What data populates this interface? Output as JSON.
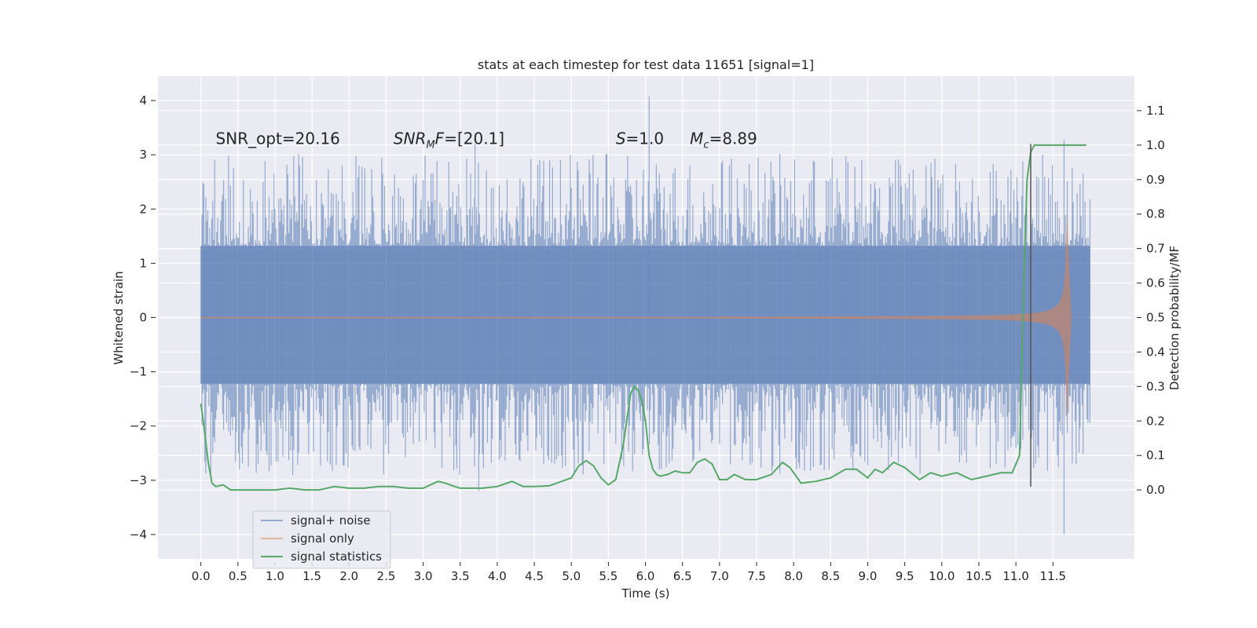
{
  "chart_data": {
    "type": "line",
    "title": "stats at each timestep for test data 11651 [signal=1]",
    "xlabel": "Time (s)",
    "ylabel_left": "Whitened strain",
    "ylabel_right": "Detection probability/MF",
    "xlim": [
      -0.58,
      12.6
    ],
    "ylim_left": [
      -4.45,
      4.45
    ],
    "ylim_right": [
      -0.2,
      1.2
    ],
    "x_ticks": [
      "0.0",
      "0.5",
      "1.0",
      "1.5",
      "2.0",
      "2.5",
      "3.0",
      "3.5",
      "4.0",
      "4.5",
      "5.0",
      "5.5",
      "6.0",
      "6.5",
      "7.0",
      "7.5",
      "8.0",
      "8.5",
      "9.0",
      "9.5",
      "10.0",
      "10.5",
      "11.0",
      "11.5"
    ],
    "y_ticks_left": [
      "−4",
      "−3",
      "−2",
      "−1",
      "0",
      "1",
      "2",
      "3",
      "4"
    ],
    "y_ticks_right": [
      "0.0",
      "0.1",
      "0.2",
      "0.3",
      "0.4",
      "0.5",
      "0.6",
      "0.7",
      "0.8",
      "0.9",
      "1.0",
      "1.1"
    ],
    "annotations": [
      {
        "label": "SNR_opt=20.16",
        "x": 0.2,
        "y": 3.2
      },
      {
        "label": "SNRMF=[20.1]",
        "x": 2.6,
        "y": 3.2
      },
      {
        "label": "S=1.0",
        "x": 5.6,
        "y": 3.2
      },
      {
        "label": "Mc=8.89",
        "x": 6.6,
        "y": 3.2
      }
    ],
    "marker_line": {
      "x": 11.2,
      "y_range": [
        -3.12,
        3.2
      ]
    },
    "series": [
      {
        "name": "signal+ noise",
        "axis": "left",
        "color": "#4c72b0",
        "kind": "noise",
        "x_range": [
          0.0,
          12.0
        ],
        "dense_band": [
          -1.22,
          1.32
        ],
        "notable_peaks": [
          {
            "x": 6.05,
            "y": 4.08
          },
          {
            "x": 11.65,
            "y": 3.27
          },
          {
            "x": 3.7,
            "y": 3.2
          },
          {
            "x": 11.65,
            "y": -4.0
          },
          {
            "x": 3.75,
            "y": -3.2
          }
        ]
      },
      {
        "name": "signal only",
        "axis": "left",
        "color": "#dd8452",
        "kind": "chirp",
        "x_range": [
          7.0,
          11.75
        ],
        "peak_amplitude": 2.2,
        "merger_time": 11.68
      },
      {
        "name": "signal statistics",
        "axis": "right",
        "color": "#55a868",
        "kind": "line",
        "x": [
          0.0,
          0.05,
          0.1,
          0.15,
          0.2,
          0.3,
          0.4,
          0.5,
          0.6,
          0.8,
          1.0,
          1.2,
          1.4,
          1.6,
          1.8,
          2.0,
          2.2,
          2.4,
          2.6,
          2.8,
          3.0,
          3.2,
          3.3,
          3.4,
          3.5,
          3.6,
          3.8,
          4.0,
          4.2,
          4.35,
          4.5,
          4.7,
          5.0,
          5.1,
          5.2,
          5.3,
          5.4,
          5.5,
          5.6,
          5.7,
          5.8,
          5.85,
          5.9,
          5.95,
          6.0,
          6.05,
          6.1,
          6.15,
          6.2,
          6.3,
          6.4,
          6.5,
          6.6,
          6.7,
          6.8,
          6.9,
          7.0,
          7.1,
          7.2,
          7.35,
          7.5,
          7.7,
          7.85,
          7.95,
          8.1,
          8.3,
          8.5,
          8.7,
          8.85,
          9.0,
          9.1,
          9.2,
          9.35,
          9.5,
          9.7,
          9.85,
          10.0,
          10.2,
          10.4,
          10.6,
          10.8,
          10.95,
          11.05,
          11.1,
          11.15,
          11.2,
          11.25,
          11.3,
          11.4,
          11.6,
          11.8,
          11.95
        ],
        "y": [
          0.25,
          0.17,
          0.08,
          0.02,
          0.01,
          0.015,
          0.0,
          0.0,
          0.0,
          0.0,
          0.0,
          0.005,
          0.0,
          0.0,
          0.01,
          0.005,
          0.005,
          0.01,
          0.01,
          0.005,
          0.005,
          0.025,
          0.02,
          0.012,
          0.005,
          0.005,
          0.005,
          0.01,
          0.025,
          0.01,
          0.01,
          0.012,
          0.035,
          0.07,
          0.085,
          0.07,
          0.035,
          0.015,
          0.03,
          0.13,
          0.28,
          0.3,
          0.29,
          0.26,
          0.2,
          0.1,
          0.06,
          0.045,
          0.04,
          0.045,
          0.055,
          0.05,
          0.05,
          0.08,
          0.09,
          0.075,
          0.03,
          0.03,
          0.045,
          0.03,
          0.03,
          0.045,
          0.08,
          0.065,
          0.02,
          0.025,
          0.035,
          0.06,
          0.06,
          0.035,
          0.06,
          0.05,
          0.08,
          0.065,
          0.03,
          0.05,
          0.04,
          0.05,
          0.03,
          0.04,
          0.05,
          0.05,
          0.1,
          0.55,
          0.9,
          0.98,
          1.0,
          1.0,
          1.0,
          1.0,
          1.0,
          1.0
        ]
      }
    ],
    "legend": {
      "placement": "lower-left",
      "entries": [
        "signal+ noise",
        "signal only",
        "signal statistics"
      ]
    }
  }
}
